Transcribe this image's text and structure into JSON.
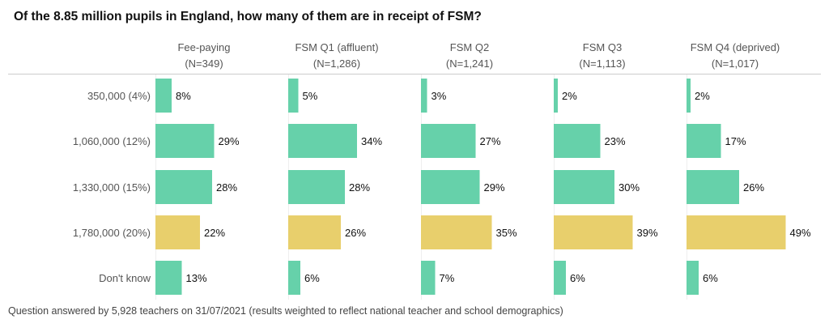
{
  "chart_data": {
    "type": "bar",
    "title": "Of the 8.85 million pupils in England, how many of them are in receipt of FSM?",
    "footnote": "Question answered by 5,928 teachers on 31/07/2021 (results weighted to reflect national teacher and school demographics)",
    "categories": [
      "350,000 (4%)",
      "1,060,000 (12%)",
      "1,330,000 (15%)",
      "1,780,000 (20%)",
      "Don't know"
    ],
    "highlight_category": 3,
    "colors": {
      "default": "#66d1aa",
      "highlight": "#e8cf6c"
    },
    "panels": [
      {
        "name": "Fee-paying",
        "n": "(N=349)",
        "values": [
          8,
          29,
          28,
          22,
          13
        ]
      },
      {
        "name": "FSM Q1 (affluent)",
        "n": "(N=1,286)",
        "values": [
          5,
          34,
          28,
          26,
          6
        ]
      },
      {
        "name": "FSM Q2",
        "n": "(N=1,241)",
        "values": [
          3,
          27,
          29,
          35,
          7
        ]
      },
      {
        "name": "FSM Q3",
        "n": "(N=1,113)",
        "values": [
          2,
          23,
          30,
          39,
          6
        ]
      },
      {
        "name": "FSM Q4 (deprived)",
        "n": "(N=1,017)",
        "values": [
          2,
          17,
          26,
          49,
          6
        ]
      }
    ],
    "xlim": [
      0,
      55
    ],
    "unit": "%"
  }
}
